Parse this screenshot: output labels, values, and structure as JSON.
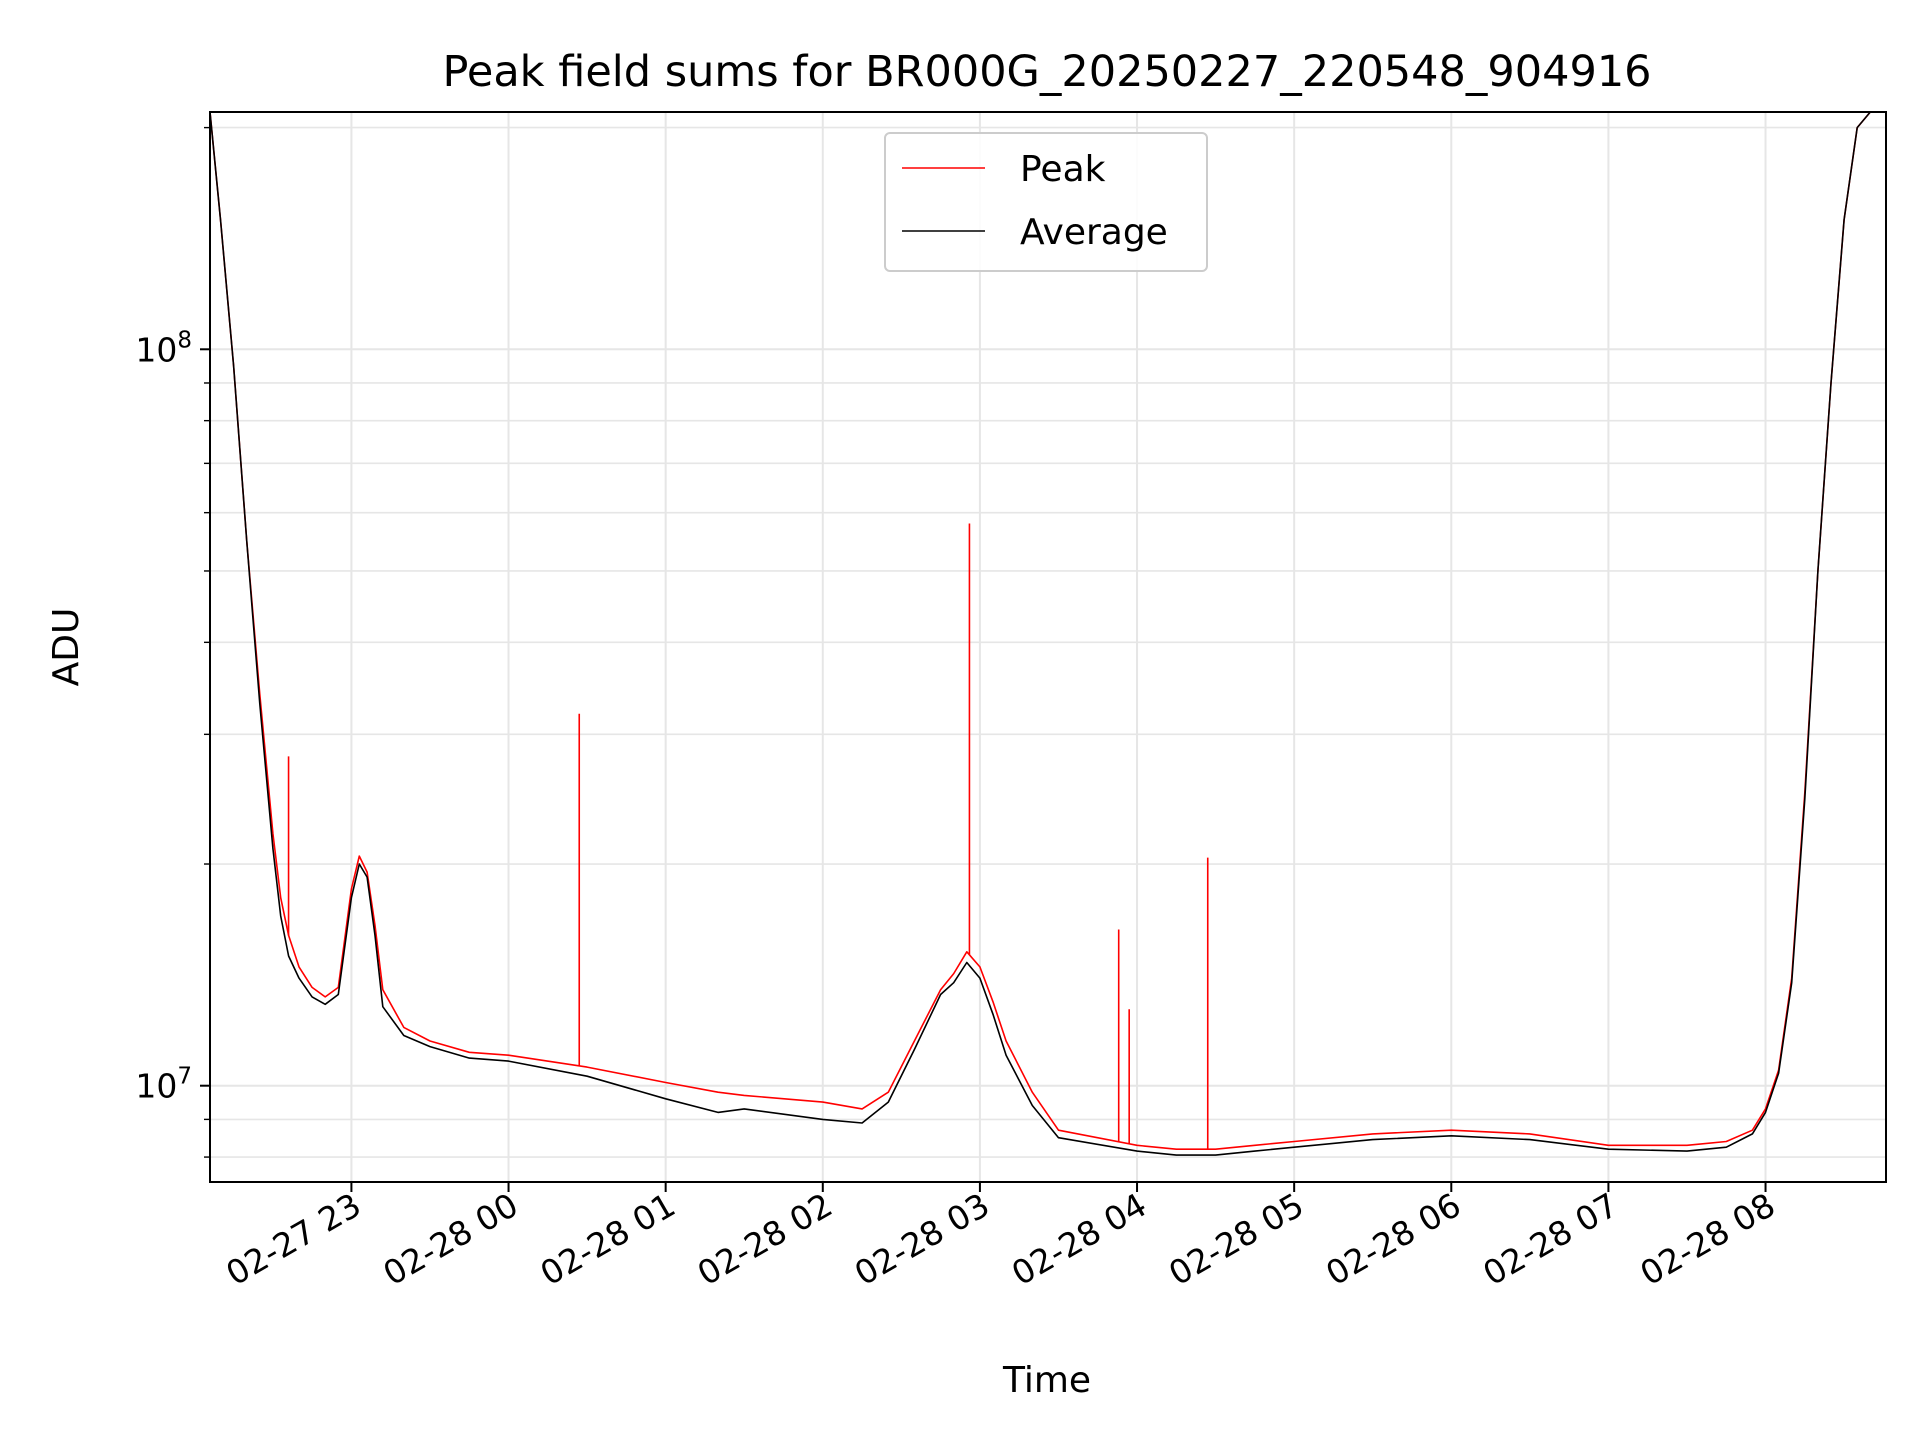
{
  "chart_data": {
    "type": "line",
    "title": "Peak field sums for BR000G_20250227_220548_904916",
    "xlabel": "Time",
    "ylabel": "ADU",
    "yscale": "log",
    "ylim": [
      7400000,
      210000000
    ],
    "xlim": [
      "2025-02-27 22:06",
      "2025-02-28 08:46"
    ],
    "grid": true,
    "legend": {
      "placement": "top-center",
      "entries": [
        "Peak",
        "Average"
      ]
    },
    "x_ticks": [
      "02-27 23",
      "02-28 00",
      "02-28 01",
      "02-28 02",
      "02-28 03",
      "02-28 04",
      "02-28 05",
      "02-28 06",
      "02-28 07",
      "02-28 08"
    ],
    "y_ticks": [
      {
        "base": "10",
        "exp": "7",
        "value": 10000000
      },
      {
        "base": "10",
        "exp": "8",
        "value": 100000000
      }
    ],
    "colors": {
      "Peak": "#ff0000",
      "Average": "#000000"
    },
    "series": [
      {
        "name": "Peak",
        "color": "#ff0000",
        "x": [
          "2025-02-27 22:06",
          "2025-02-27 22:10",
          "2025-02-27 22:15",
          "2025-02-27 22:20",
          "2025-02-27 22:25",
          "2025-02-27 22:30",
          "2025-02-27 22:33",
          "2025-02-27 22:36",
          "2025-02-27 22:40",
          "2025-02-27 22:45",
          "2025-02-27 22:50",
          "2025-02-27 22:55",
          "2025-02-27 23:00",
          "2025-02-27 23:03",
          "2025-02-27 23:06",
          "2025-02-27 23:09",
          "2025-02-27 23:12",
          "2025-02-27 23:20",
          "2025-02-27 23:30",
          "2025-02-27 23:45",
          "2025-02-28 00:00",
          "2025-02-28 00:30",
          "2025-02-28 01:00",
          "2025-02-28 01:20",
          "2025-02-28 01:30",
          "2025-02-28 02:00",
          "2025-02-28 02:15",
          "2025-02-28 02:25",
          "2025-02-28 02:35",
          "2025-02-28 02:45",
          "2025-02-28 02:50",
          "2025-02-28 02:55",
          "2025-02-28 03:00",
          "2025-02-28 03:05",
          "2025-02-28 03:10",
          "2025-02-28 03:20",
          "2025-02-28 03:30",
          "2025-02-28 04:00",
          "2025-02-28 04:15",
          "2025-02-28 04:30",
          "2025-02-28 04:45",
          "2025-02-28 05:00",
          "2025-02-28 05:30",
          "2025-02-28 06:00",
          "2025-02-28 06:30",
          "2025-02-28 07:00",
          "2025-02-28 07:30",
          "2025-02-28 07:45",
          "2025-02-28 07:55",
          "2025-02-28 08:00",
          "2025-02-28 08:05",
          "2025-02-28 08:10",
          "2025-02-28 08:15",
          "2025-02-28 08:20",
          "2025-02-28 08:25",
          "2025-02-28 08:30",
          "2025-02-28 08:35",
          "2025-02-28 08:40"
        ],
        "y": [
          210000000,
          150000000,
          95000000,
          55000000,
          34000000,
          22000000,
          18000000,
          16000000,
          14500000,
          13600000,
          13200000,
          13600000,
          18500000,
          20500000,
          19500000,
          16500000,
          13500000,
          12000000,
          11500000,
          11100000,
          11000000,
          10600000,
          10100000,
          9800000,
          9700000,
          9500000,
          9300000,
          9800000,
          11500000,
          13500000,
          14200000,
          15200000,
          14500000,
          13000000,
          11500000,
          9800000,
          8700000,
          8300000,
          8200000,
          8200000,
          8300000,
          8400000,
          8600000,
          8700000,
          8600000,
          8300000,
          8300000,
          8400000,
          8700000,
          9300000,
          10500000,
          14000000,
          25000000,
          50000000,
          90000000,
          150000000,
          200000000,
          220000000
        ]
      },
      {
        "name": "Average",
        "color": "#000000",
        "x": [
          "2025-02-27 22:06",
          "2025-02-27 22:10",
          "2025-02-27 22:15",
          "2025-02-27 22:20",
          "2025-02-27 22:25",
          "2025-02-27 22:30",
          "2025-02-27 22:33",
          "2025-02-27 22:36",
          "2025-02-27 22:40",
          "2025-02-27 22:45",
          "2025-02-27 22:50",
          "2025-02-27 22:55",
          "2025-02-27 23:00",
          "2025-02-27 23:03",
          "2025-02-27 23:06",
          "2025-02-27 23:09",
          "2025-02-27 23:12",
          "2025-02-27 23:20",
          "2025-02-27 23:30",
          "2025-02-27 23:45",
          "2025-02-28 00:00",
          "2025-02-28 00:30",
          "2025-02-28 01:00",
          "2025-02-28 01:20",
          "2025-02-28 01:30",
          "2025-02-28 02:00",
          "2025-02-28 02:15",
          "2025-02-28 02:25",
          "2025-02-28 02:35",
          "2025-02-28 02:45",
          "2025-02-28 02:50",
          "2025-02-28 02:55",
          "2025-02-28 03:00",
          "2025-02-28 03:05",
          "2025-02-28 03:10",
          "2025-02-28 03:20",
          "2025-02-28 03:30",
          "2025-02-28 04:00",
          "2025-02-28 04:15",
          "2025-02-28 04:30",
          "2025-02-28 04:45",
          "2025-02-28 05:00",
          "2025-02-28 05:30",
          "2025-02-28 06:00",
          "2025-02-28 06:30",
          "2025-02-28 07:00",
          "2025-02-28 07:30",
          "2025-02-28 07:45",
          "2025-02-28 07:55",
          "2025-02-28 08:00",
          "2025-02-28 08:05",
          "2025-02-28 08:10",
          "2025-02-28 08:15",
          "2025-02-28 08:20",
          "2025-02-28 08:25",
          "2025-02-28 08:30",
          "2025-02-28 08:35",
          "2025-02-28 08:40"
        ],
        "y": [
          210000000,
          150000000,
          95000000,
          55000000,
          33000000,
          21000000,
          17000000,
          15000000,
          14000000,
          13200000,
          12900000,
          13300000,
          18000000,
          20000000,
          19200000,
          16000000,
          12800000,
          11700000,
          11300000,
          10900000,
          10800000,
          10300000,
          9600000,
          9200000,
          9300000,
          9000000,
          8900000,
          9500000,
          11200000,
          13300000,
          13800000,
          14700000,
          14000000,
          12500000,
          11000000,
          9400000,
          8500000,
          8150000,
          8050000,
          8050000,
          8150000,
          8250000,
          8450000,
          8550000,
          8450000,
          8200000,
          8150000,
          8250000,
          8600000,
          9200000,
          10400000,
          13800000,
          24500000,
          50000000,
          90000000,
          150000000,
          200000000,
          220000000
        ]
      }
    ],
    "peak_spikes": [
      {
        "x": "2025-02-27 22:36",
        "y": 28000000
      },
      {
        "x": "2025-02-28 00:27",
        "y": 32000000
      },
      {
        "x": "2025-02-28 02:56",
        "y": 58000000
      },
      {
        "x": "2025-02-28 03:53",
        "y": 16300000
      },
      {
        "x": "2025-02-28 03:57",
        "y": 12700000
      },
      {
        "x": "2025-02-28 04:27",
        "y": 20400000
      }
    ]
  }
}
